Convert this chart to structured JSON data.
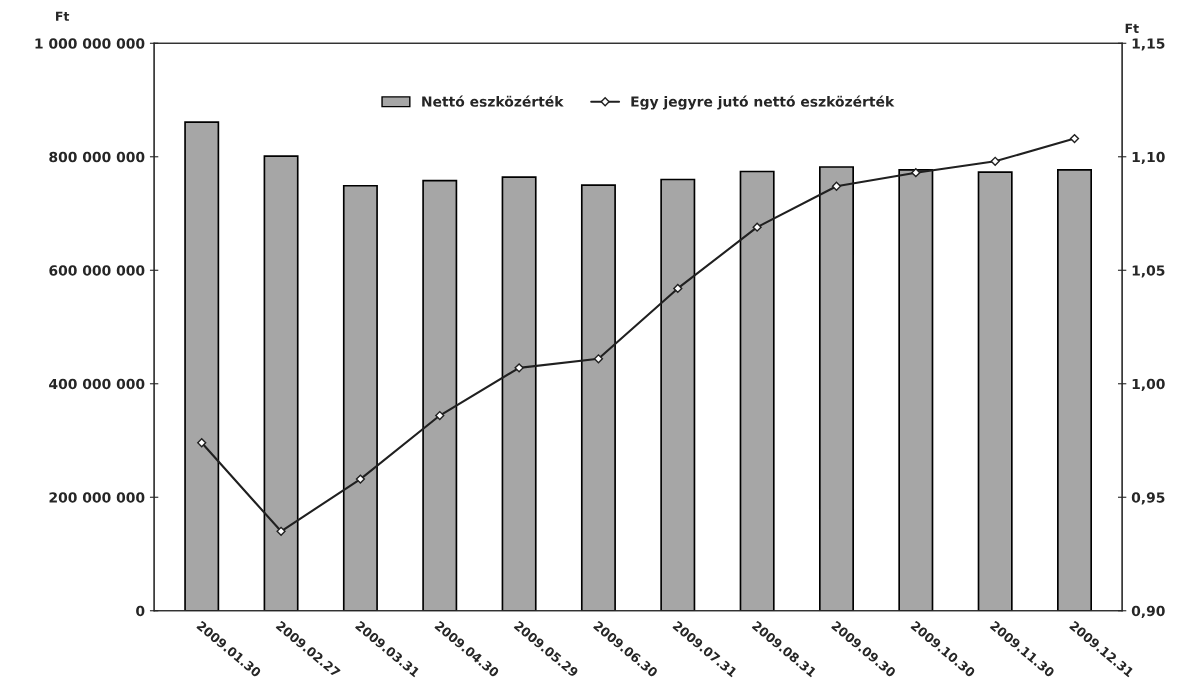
{
  "chart_data": {
    "type": "bar",
    "ylabel": "Ft",
    "y2label": "Ft",
    "categories": [
      "2009.01.30",
      "2009.02.27",
      "2009.03.31",
      "2009.04.30",
      "2009.05.29",
      "2009.06.30",
      "2009.07.31",
      "2009.08.31",
      "2009.09.30",
      "2009.10.30",
      "2009.11.30",
      "2009.12.31"
    ],
    "series": [
      {
        "name": "Nettó eszközérték",
        "color": "#a6a6a6",
        "values": [
          861000000,
          801000000,
          749000000,
          758000000,
          764000000,
          750000000,
          760000000,
          774000000,
          782000000,
          777000000,
          773000000,
          777000000
        ]
      },
      {
        "name": "Egy jegyre jutó nettó eszközérték",
        "type": "line",
        "axis": "y2",
        "color": "#202020",
        "marker": "diamond",
        "values": [
          0.974,
          0.935,
          0.958,
          0.986,
          1.007,
          1.011,
          1.042,
          1.069,
          1.087,
          1.093,
          1.098,
          1.108
        ]
      }
    ],
    "ylim": [
      0,
      1000000000
    ],
    "yticks": [
      {
        "value": 0,
        "label": "0"
      },
      {
        "value": 200000000,
        "label": "200 000 000"
      },
      {
        "value": 400000000,
        "label": "400 000 000"
      },
      {
        "value": 600000000,
        "label": "600 000 000"
      },
      {
        "value": 800000000,
        "label": "800 000 000"
      },
      {
        "value": 1000000000,
        "label": "1 000 000 000"
      }
    ],
    "y2lim": [
      0.9,
      1.15
    ],
    "y2ticks": [
      {
        "value": 0.9,
        "label": "0,90"
      },
      {
        "value": 0.95,
        "label": "0,95"
      },
      {
        "value": 1.0,
        "label": "1,00"
      },
      {
        "value": 1.05,
        "label": "1,05"
      },
      {
        "value": 1.1,
        "label": "1,10"
      },
      {
        "value": 1.15,
        "label": "1,15"
      }
    ],
    "legend": "top",
    "grid": false
  }
}
